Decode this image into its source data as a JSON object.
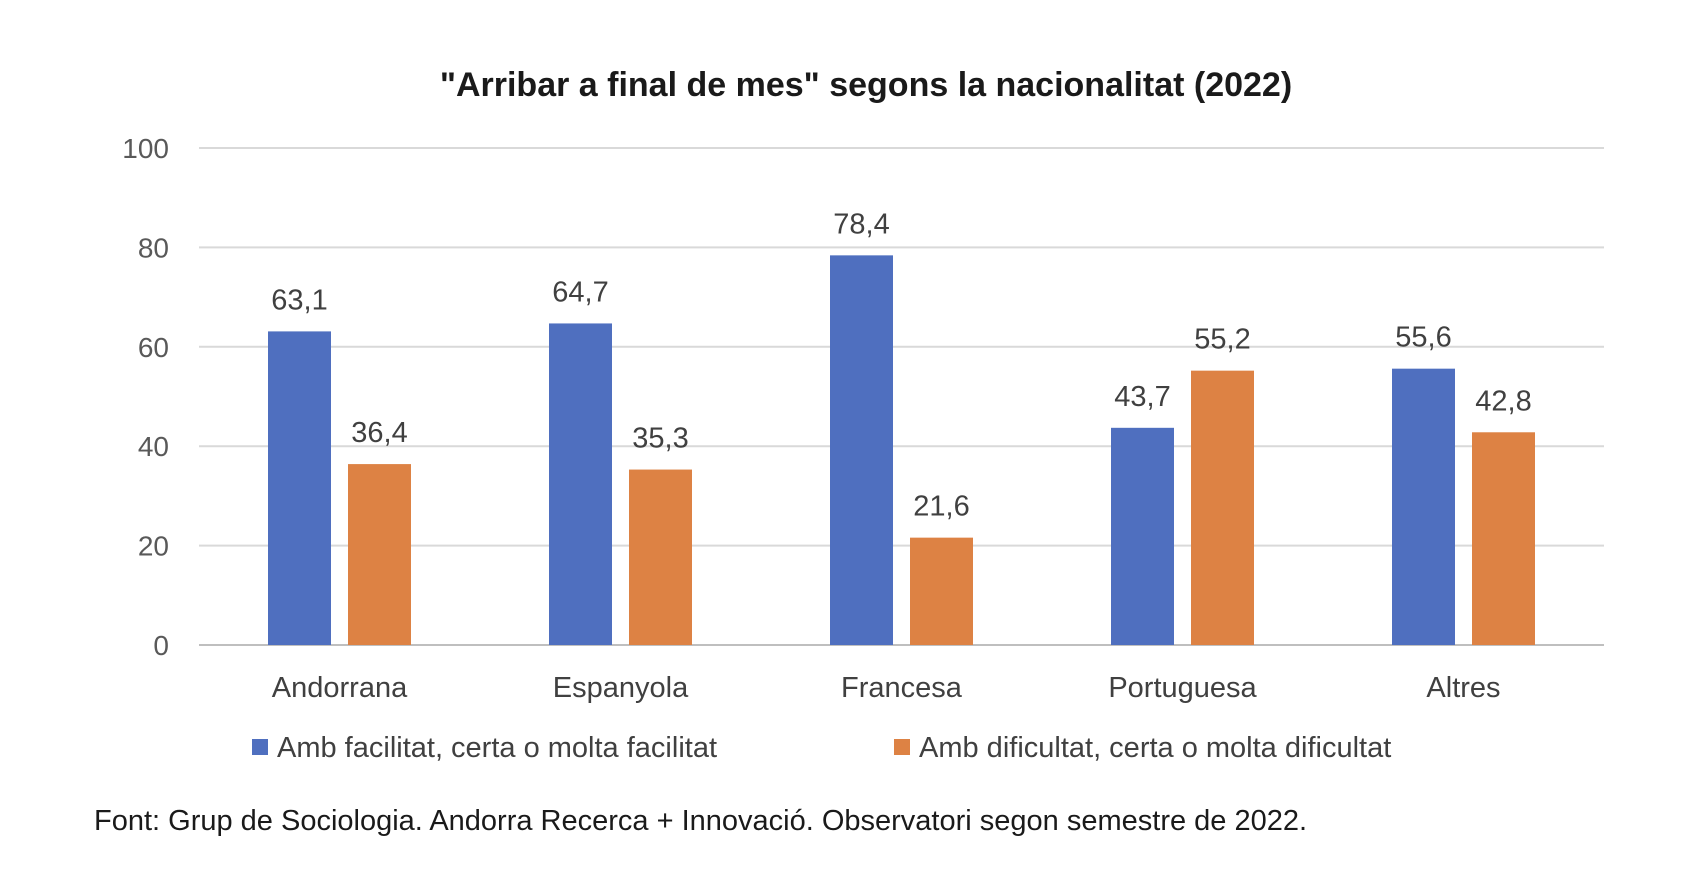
{
  "chart_data": {
    "type": "bar",
    "title": "\"Arribar a final de mes\" segons la nacionalitat (2022)",
    "categories": [
      "Andorrana",
      "Espanyola",
      "Francesa",
      "Portuguesa",
      "Altres"
    ],
    "series": [
      {
        "name": "Amb facilitat, certa o molta facilitat",
        "values": [
          63.1,
          64.7,
          78.4,
          43.7,
          55.6
        ],
        "labels": [
          "63,1",
          "64,7",
          "78,4",
          "43,7",
          "55,6"
        ],
        "color": "#4F6FBF"
      },
      {
        "name": "Amb dificultat, certa o molta dificultat",
        "values": [
          36.4,
          35.3,
          21.6,
          55.2,
          42.8
        ],
        "labels": [
          "36,4",
          "35,3",
          "21,6",
          "55,2",
          "42,8"
        ],
        "color": "#DD8244"
      }
    ],
    "ylim": [
      0,
      100
    ],
    "yticks": [
      0,
      20,
      40,
      60,
      80,
      100
    ],
    "ytick_labels": [
      "0",
      "20",
      "40",
      "60",
      "80",
      "100"
    ],
    "grid": true,
    "legend_position": "bottom"
  },
  "source": "Font: Grup de Sociologia. Andorra Recerca + Innovació. Observatori segon semestre de 2022.",
  "colors": {
    "gridline": "#D9D9D9",
    "axis": "#BFBFBF"
  }
}
